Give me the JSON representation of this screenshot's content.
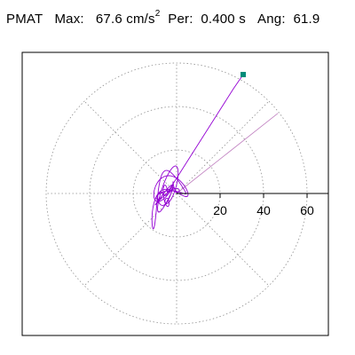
{
  "header": {
    "label": "PMAT",
    "max_label": "Max:",
    "max_value": "67.6",
    "max_unit": "cm/s",
    "max_unit_exp": "2",
    "per_label": "Per:",
    "per_value": "0.400 s",
    "ang_label": "Ang:",
    "ang_value": "61.9"
  },
  "chart_data": {
    "type": "polar-orbit",
    "title": "PMAT Max: 67.6 cm/s2 Per: 0.400 s Ang: 61.9",
    "max_amplitude": 67.6,
    "max_angle_deg": 61.9,
    "period_s": 0.4,
    "radial_ticks": [
      20,
      40,
      60
    ],
    "ring_radii": [
      20,
      40,
      60
    ],
    "radial_spoke_angles_deg": [
      0,
      45,
      90,
      135,
      180,
      225,
      270,
      315
    ],
    "radial_max": 75,
    "grid": true,
    "colors": {
      "orbit": "#9400d3",
      "peak_marker": "#008c7a",
      "grid": "#909090",
      "axis": "#000000"
    }
  }
}
